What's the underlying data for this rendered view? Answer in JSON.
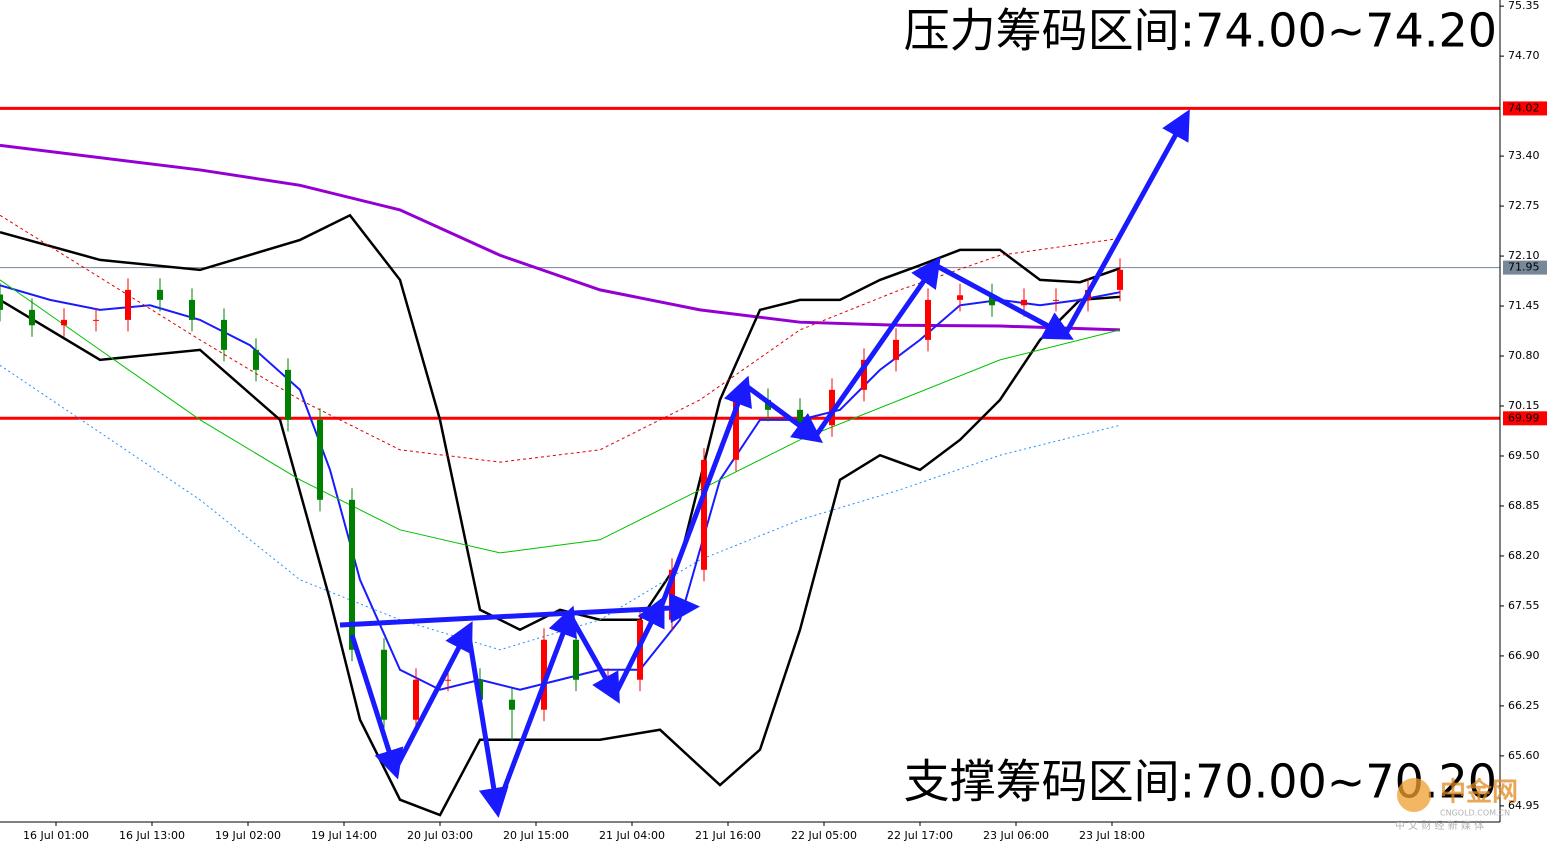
{
  "chart_data": {
    "type": "candlestick",
    "annotations": [
      "压力筹码区间:74.00~74.20",
      "支撑筹码区间:70.00~70.20"
    ],
    "watermark": {
      "logo": "中金网",
      "domain": "CNGOLD.COM.CN",
      "tagline": "中 文 财 经 新 媒 体"
    },
    "up_color": "#ff0000",
    "down_color": "#008000",
    "x": [
      0,
      4,
      8,
      12,
      16,
      20,
      24,
      28,
      32,
      36,
      40,
      44,
      48,
      52,
      56,
      60,
      64,
      68,
      72,
      76,
      80,
      84,
      88,
      92,
      96,
      100,
      104,
      108,
      112,
      116,
      120,
      124,
      128,
      132,
      136,
      140
    ],
    "open": [
      71.6,
      71.4,
      71.2,
      71.27,
      71.27,
      71.66,
      71.53,
      71.27,
      70.88,
      70.62,
      69.97,
      68.93,
      66.98,
      66.07,
      66.59,
      66.59,
      66.33,
      66.2,
      67.11,
      66.59,
      66.59,
      67.37,
      68.02,
      69.45,
      70.23,
      70.1,
      69.9,
      70.36,
      70.75,
      71.01,
      71.53,
      71.59,
      71.46,
      71.53,
      71.53,
      71.66
    ],
    "high": [
      71.75,
      71.55,
      71.42,
      71.42,
      71.81,
      71.81,
      71.68,
      71.42,
      71.03,
      70.77,
      70.12,
      69.08,
      67.13,
      66.74,
      66.74,
      66.74,
      66.48,
      67.26,
      67.26,
      66.74,
      67.52,
      68.17,
      69.6,
      70.38,
      70.38,
      70.25,
      70.51,
      70.9,
      71.16,
      71.68,
      71.74,
      71.74,
      71.68,
      71.68,
      71.81,
      72.07
    ],
    "low": [
      71.25,
      71.05,
      71.05,
      71.12,
      71.12,
      71.38,
      71.12,
      70.73,
      70.47,
      69.82,
      68.78,
      66.83,
      65.92,
      65.92,
      66.44,
      66.18,
      65.8,
      66.05,
      66.44,
      66.44,
      66.44,
      67.22,
      67.87,
      69.3,
      69.95,
      69.75,
      69.75,
      70.21,
      70.6,
      70.86,
      71.38,
      71.31,
      71.31,
      71.38,
      71.38,
      71.51
    ],
    "close": [
      71.4,
      71.2,
      71.27,
      71.27,
      71.66,
      71.53,
      71.27,
      70.88,
      70.62,
      69.97,
      68.93,
      66.98,
      66.07,
      66.59,
      66.59,
      66.33,
      66.2,
      67.11,
      66.59,
      66.59,
      67.37,
      68.02,
      69.45,
      70.23,
      70.1,
      69.9,
      70.36,
      70.75,
      71.01,
      71.53,
      71.59,
      71.46,
      71.53,
      71.53,
      71.66,
      71.92
    ],
    "series": [
      {
        "color": "#9400d3",
        "width": 3,
        "x": [
          0,
          25,
          37.5,
          50,
          62.5,
          75,
          87.5,
          100,
          112.5,
          125,
          140
        ],
        "values": [
          73.54,
          73.22,
          73.02,
          72.7,
          72.11,
          71.66,
          71.4,
          71.24,
          71.2,
          71.19,
          71.14
        ]
      },
      {
        "color": "#000000",
        "width": 2.5,
        "x": [
          0,
          12.5,
          25,
          37.5,
          43.75,
          50,
          55,
          60,
          65,
          70,
          75,
          80,
          85,
          90,
          95,
          100,
          105,
          110,
          115,
          120,
          125,
          130,
          135,
          140
        ],
        "values": [
          72.41,
          72.05,
          71.92,
          72.31,
          72.63,
          71.79,
          69.97,
          67.5,
          67.24,
          67.5,
          67.37,
          67.37,
          68.15,
          70.23,
          71.4,
          71.53,
          71.53,
          71.79,
          71.98,
          72.18,
          72.18,
          71.79,
          71.76,
          71.94
        ]
      },
      {
        "color": "#000000",
        "width": 2.5,
        "x": [
          0,
          12.5,
          25,
          35,
          41.25,
          45,
          50,
          55,
          60,
          65,
          70,
          75,
          82.5,
          90,
          95,
          100,
          105,
          110,
          115,
          120,
          125,
          130,
          135,
          140
        ],
        "values": [
          71.53,
          70.75,
          70.88,
          69.97,
          67.63,
          66.07,
          65.03,
          64.83,
          65.81,
          65.81,
          65.81,
          65.81,
          65.94,
          65.22,
          65.68,
          67.24,
          69.19,
          69.51,
          69.32,
          69.71,
          70.23,
          71.01,
          71.53,
          71.57
        ]
      },
      {
        "color": "#1a1aff",
        "width": 2,
        "x": [
          0,
          6.25,
          12.5,
          18.75,
          25,
          31.25,
          37.5,
          41.25,
          45,
          50,
          55,
          60,
          65,
          70,
          75,
          80,
          85,
          90,
          95,
          100,
          105,
          110,
          115,
          120,
          125,
          130,
          135,
          140
        ],
        "values": [
          71.72,
          71.53,
          71.4,
          71.46,
          71.27,
          70.94,
          70.36,
          69.32,
          67.89,
          66.72,
          66.46,
          66.59,
          66.46,
          66.59,
          66.72,
          66.72,
          67.37,
          69.19,
          69.97,
          69.97,
          70.1,
          70.62,
          71.01,
          71.46,
          71.53,
          71.46,
          71.53,
          71.63
        ]
      },
      {
        "color": "#00c000",
        "width": 1,
        "x": [
          0,
          12.5,
          25,
          37.5,
          50,
          62.5,
          75,
          87.5,
          100,
          112.5,
          125,
          140
        ],
        "values": [
          71.79,
          70.88,
          69.97,
          69.19,
          68.54,
          68.24,
          68.41,
          69.06,
          69.71,
          70.23,
          70.75,
          71.14
        ]
      },
      {
        "color": "#e00000",
        "width": 1,
        "dash": "3 3",
        "x": [
          0,
          25,
          37.5,
          50,
          62.5,
          75,
          87.5,
          100,
          112.5,
          125,
          140
        ],
        "values": [
          72.63,
          71.01,
          70.23,
          69.58,
          69.42,
          69.58,
          70.23,
          71.14,
          71.66,
          72.11,
          72.33
        ]
      },
      {
        "color": "#1e90ff",
        "width": 1,
        "dash": "2 3",
        "x": [
          0,
          25,
          37.5,
          50,
          62.5,
          75,
          87.5,
          100,
          112.5,
          125,
          140
        ],
        "values": [
          70.68,
          68.93,
          67.89,
          67.37,
          66.98,
          67.37,
          68.15,
          68.67,
          69.06,
          69.51,
          69.9
        ]
      }
    ],
    "hlines": [
      {
        "value": 74.02,
        "color": "#ff0000",
        "width": 3
      },
      {
        "value": 71.95,
        "color": "#778899",
        "width": 1
      },
      {
        "value": 69.99,
        "color": "#ff0000",
        "width": 3
      }
    ],
    "xlim": [
      0,
      187.5
    ],
    "ylim": [
      64.74,
      75.43
    ],
    "yticks": [
      75.35,
      {
        "value": 74.7,
        "label": "74.70"
      },
      {
        "value": 73.4,
        "label": "73.40"
      },
      72.75,
      {
        "value": 72.1,
        "label": "72.10"
      },
      71.45,
      {
        "value": 70.8,
        "label": "70.80"
      },
      70.15,
      {
        "value": 69.5,
        "label": "69.50"
      },
      68.85,
      {
        "value": 68.2,
        "label": "68.20"
      },
      67.55,
      {
        "value": 66.9,
        "label": "66.90"
      },
      66.25,
      {
        "value": 65.6,
        "label": "65.60"
      },
      64.95
    ],
    "xticks": [
      {
        "value": 7,
        "label": "16 Jul 01:00"
      },
      {
        "value": 19,
        "label": "16 Jul 13:00"
      },
      {
        "value": 31,
        "label": "19 Jul 02:00"
      },
      {
        "value": 43,
        "label": "19 Jul 14:00"
      },
      {
        "value": 55,
        "label": "20 Jul 03:00"
      },
      {
        "value": 67,
        "label": "20 Jul 15:00"
      },
      {
        "value": 79,
        "label": "21 Jul 04:00"
      },
      {
        "value": 91,
        "label": "21 Jul 16:00"
      },
      {
        "value": 103,
        "label": "22 Jul 05:00"
      },
      {
        "value": 115,
        "label": "22 Jul 17:00"
      },
      {
        "value": 127,
        "label": "23 Jul 06:00"
      },
      {
        "value": 139,
        "label": "23 Jul 18:00"
      }
    ]
  }
}
